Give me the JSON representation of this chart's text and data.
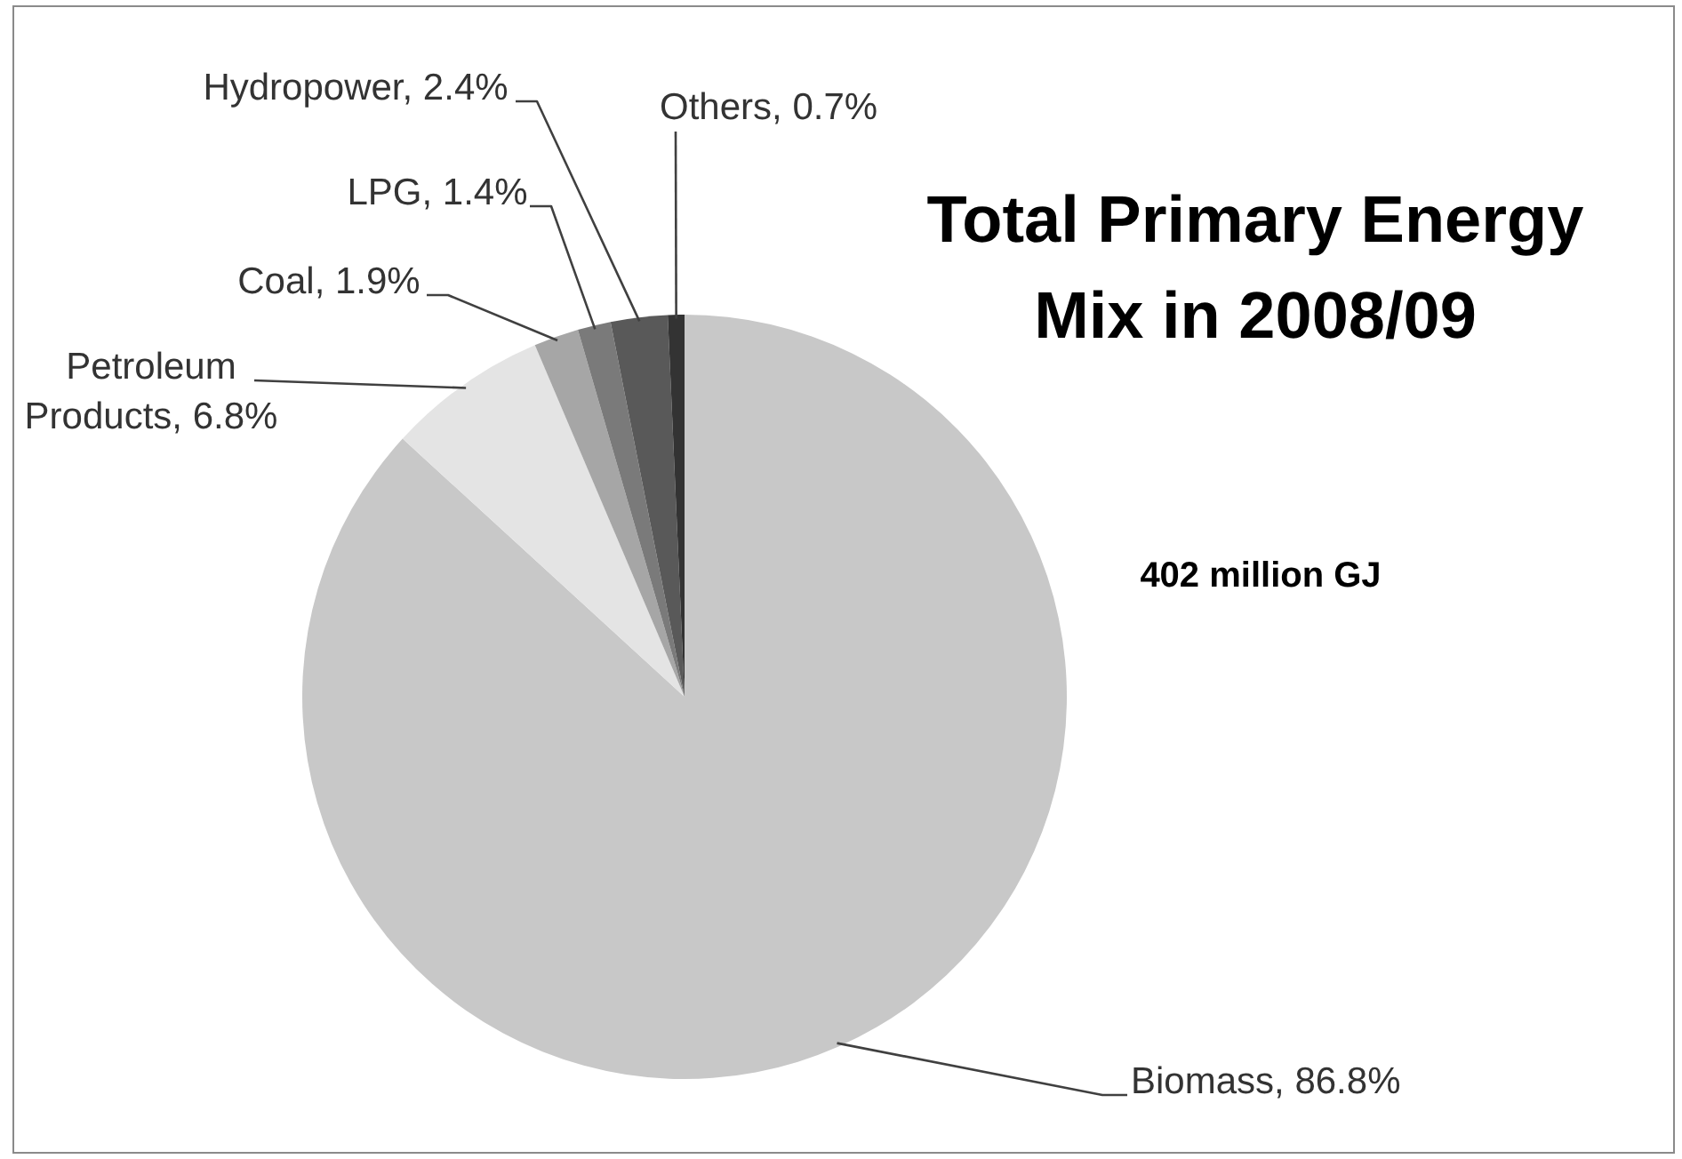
{
  "chart_data": {
    "type": "pie",
    "title": "Total Primary Energy Mix in 2008/09",
    "annotations": [
      "402 million GJ"
    ],
    "categories": [
      "Biomass",
      "Petroleum Products",
      "Coal",
      "LPG",
      "Hydropower",
      "Others"
    ],
    "values": [
      86.8,
      6.8,
      1.9,
      1.4,
      2.4,
      0.7
    ],
    "colors": [
      "#c8c8c8",
      "#e4e4e4",
      "#a6a6a6",
      "#7a7a7a",
      "#595959",
      "#333333"
    ],
    "value_labels": [
      "86.8%",
      "6.8%",
      "1.9%",
      "1.4%",
      "2.4%",
      "0.7%"
    ]
  }
}
